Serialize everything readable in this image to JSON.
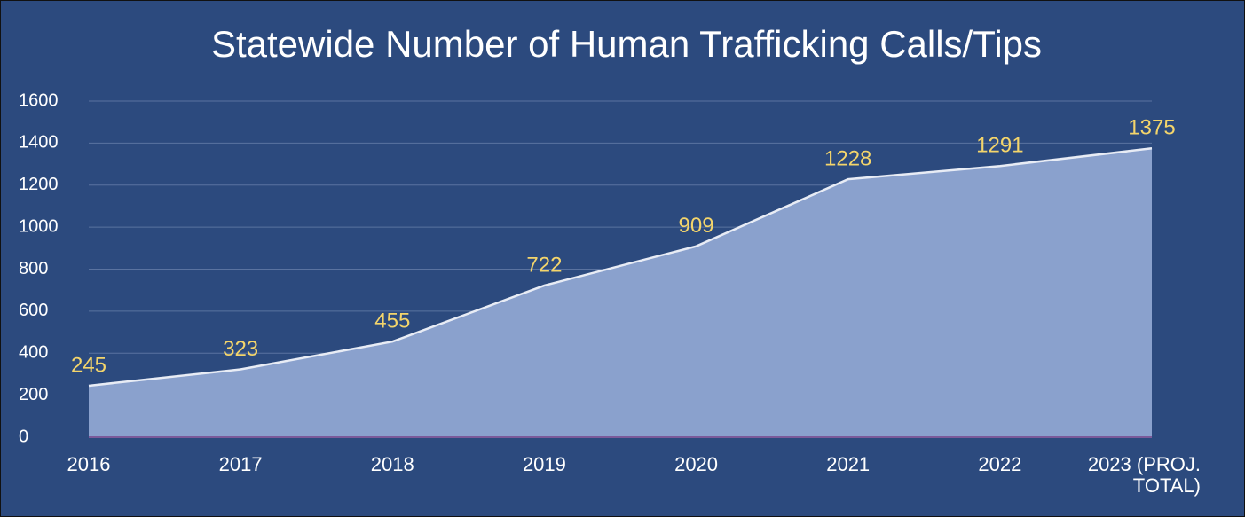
{
  "chart_data": {
    "type": "area",
    "title": "Statewide Number of Human Trafficking Calls/Tips",
    "categories": [
      "2016",
      "2017",
      "2018",
      "2019",
      "2020",
      "2021",
      "2022",
      "2023 (PROJ. TOTAL)"
    ],
    "series": [
      {
        "name": "Calls/Tips",
        "color": "#8aa1cd",
        "values": [
          245,
          323,
          455,
          722,
          909,
          1228,
          1291,
          1375
        ]
      }
    ],
    "ylim": [
      0,
      1600
    ],
    "yticks": [
      0,
      200,
      400,
      600,
      800,
      1000,
      1200,
      1400,
      1600
    ],
    "grid": true
  }
}
